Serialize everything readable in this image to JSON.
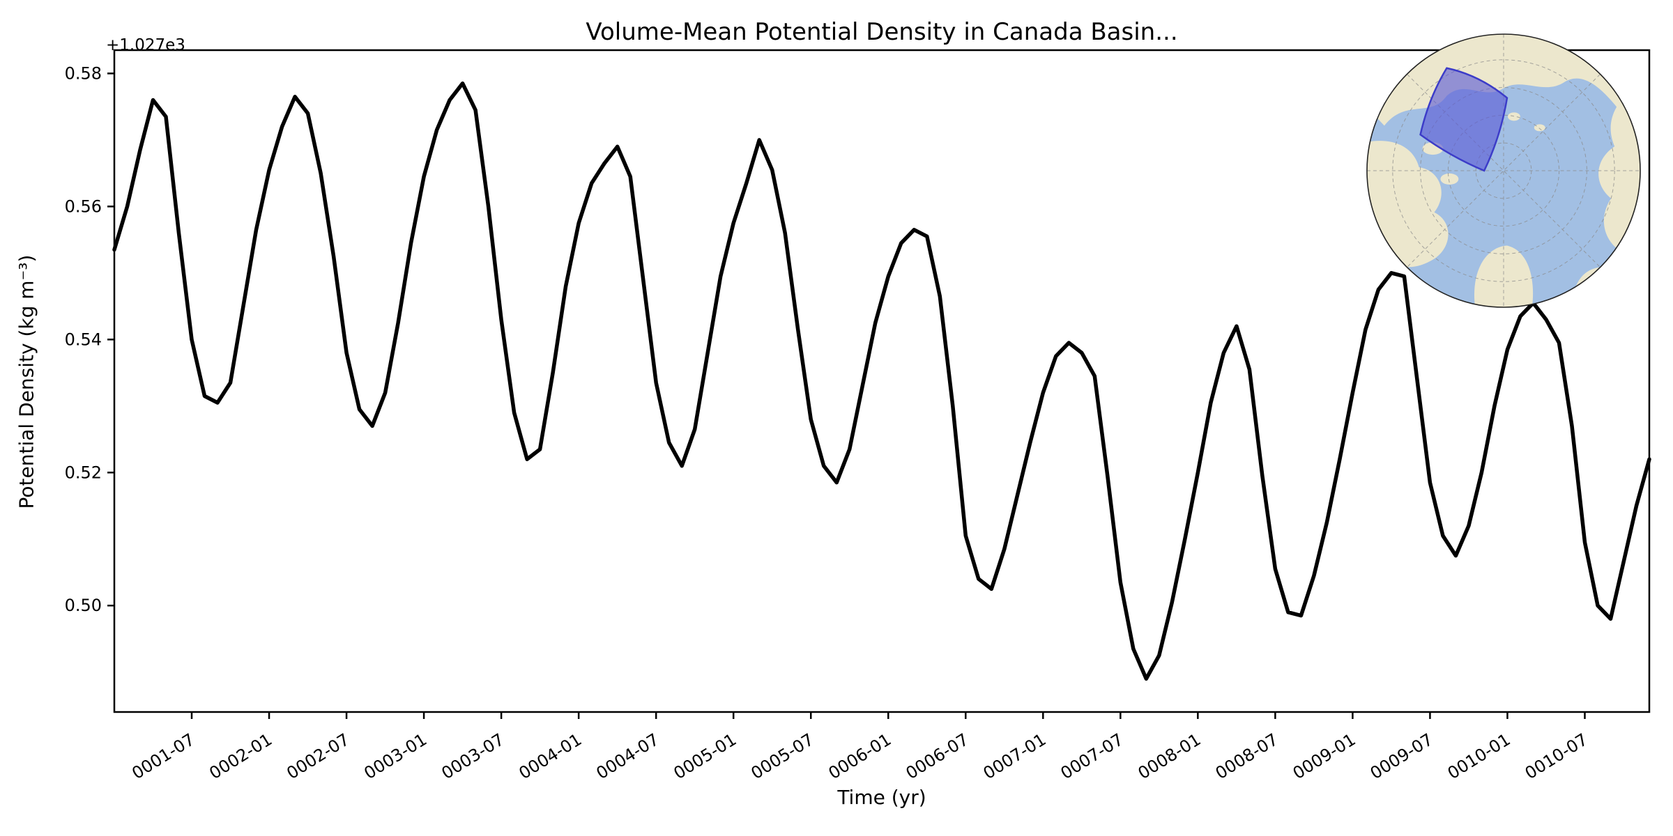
{
  "figure": {
    "title": "Volume-Mean Potential Density in Canada Basin...",
    "xlabel": "Time (yr)",
    "ylabel": "Potential Density (kg m⁻³)",
    "y_offset_label": "+1.027e3"
  },
  "chart_data": {
    "type": "line",
    "title": "Volume-Mean Potential Density in Canada Basin...",
    "xlabel": "Time (yr)",
    "ylabel": "Potential Density (kg m⁻³)",
    "y_axis_offset": "+1.027e3",
    "line_color": "#000000",
    "grid": false,
    "legend": "none",
    "x_start": "0001-01",
    "x_frequency": "monthly",
    "xlim_months": [
      0,
      119
    ],
    "ylim": [
      0.484,
      0.5835
    ],
    "y_ticks": [
      0.5,
      0.52,
      0.54,
      0.56,
      0.58
    ],
    "x_tick_months": [
      6,
      12,
      18,
      24,
      30,
      36,
      42,
      48,
      54,
      60,
      66,
      72,
      78,
      84,
      90,
      96,
      102,
      108,
      114
    ],
    "x_tick_labels": [
      "0001-07",
      "0002-01",
      "0002-07",
      "0003-01",
      "0003-07",
      "0004-01",
      "0004-07",
      "0005-01",
      "0005-07",
      "0006-01",
      "0006-07",
      "0007-01",
      "0007-07",
      "0008-01",
      "0008-07",
      "0009-01",
      "0009-07",
      "0010-01",
      "0010-07"
    ],
    "values": [
      0.5535,
      0.56,
      0.5685,
      0.576,
      0.5735,
      0.556,
      0.54,
      0.5315,
      0.5305,
      0.5335,
      0.545,
      0.5565,
      0.5655,
      0.572,
      0.5765,
      0.574,
      0.565,
      0.5525,
      0.538,
      0.5295,
      0.527,
      0.532,
      0.5425,
      0.5545,
      0.5645,
      0.5715,
      0.576,
      0.5785,
      0.5745,
      0.56,
      0.543,
      0.529,
      0.522,
      0.5235,
      0.535,
      0.548,
      0.5575,
      0.5635,
      0.5665,
      0.569,
      0.5645,
      0.549,
      0.5335,
      0.5245,
      0.521,
      0.5265,
      0.538,
      0.5495,
      0.5575,
      0.5635,
      0.57,
      0.5655,
      0.556,
      0.5415,
      0.528,
      0.521,
      0.5185,
      0.5235,
      0.533,
      0.5425,
      0.5495,
      0.5545,
      0.5565,
      0.5555,
      0.5465,
      0.53,
      0.5105,
      0.504,
      0.5025,
      0.5085,
      0.5165,
      0.5245,
      0.532,
      0.5375,
      0.5395,
      0.538,
      0.5345,
      0.5195,
      0.5035,
      0.4935,
      0.489,
      0.4925,
      0.5005,
      0.51,
      0.52,
      0.5305,
      0.538,
      0.542,
      0.5355,
      0.5195,
      0.5055,
      0.499,
      0.4985,
      0.5045,
      0.5125,
      0.522,
      0.532,
      0.5415,
      0.5475,
      0.55,
      0.5495,
      0.534,
      0.5185,
      0.5105,
      0.5075,
      0.512,
      0.52,
      0.53,
      0.5385,
      0.5435,
      0.5455,
      0.543,
      0.5395,
      0.527,
      0.5095,
      0.5,
      0.498,
      0.5065,
      0.515,
      0.522
    ],
    "inset_map": {
      "description": "Arctic polar stereographic inset map",
      "highlight_label": "Canada Basin region",
      "highlight_color": "#5b5bd6",
      "highlight_edge_color": "#3c3cc8",
      "ocean_color": "#a2bfe3",
      "land_color": "#ece7cd"
    }
  }
}
